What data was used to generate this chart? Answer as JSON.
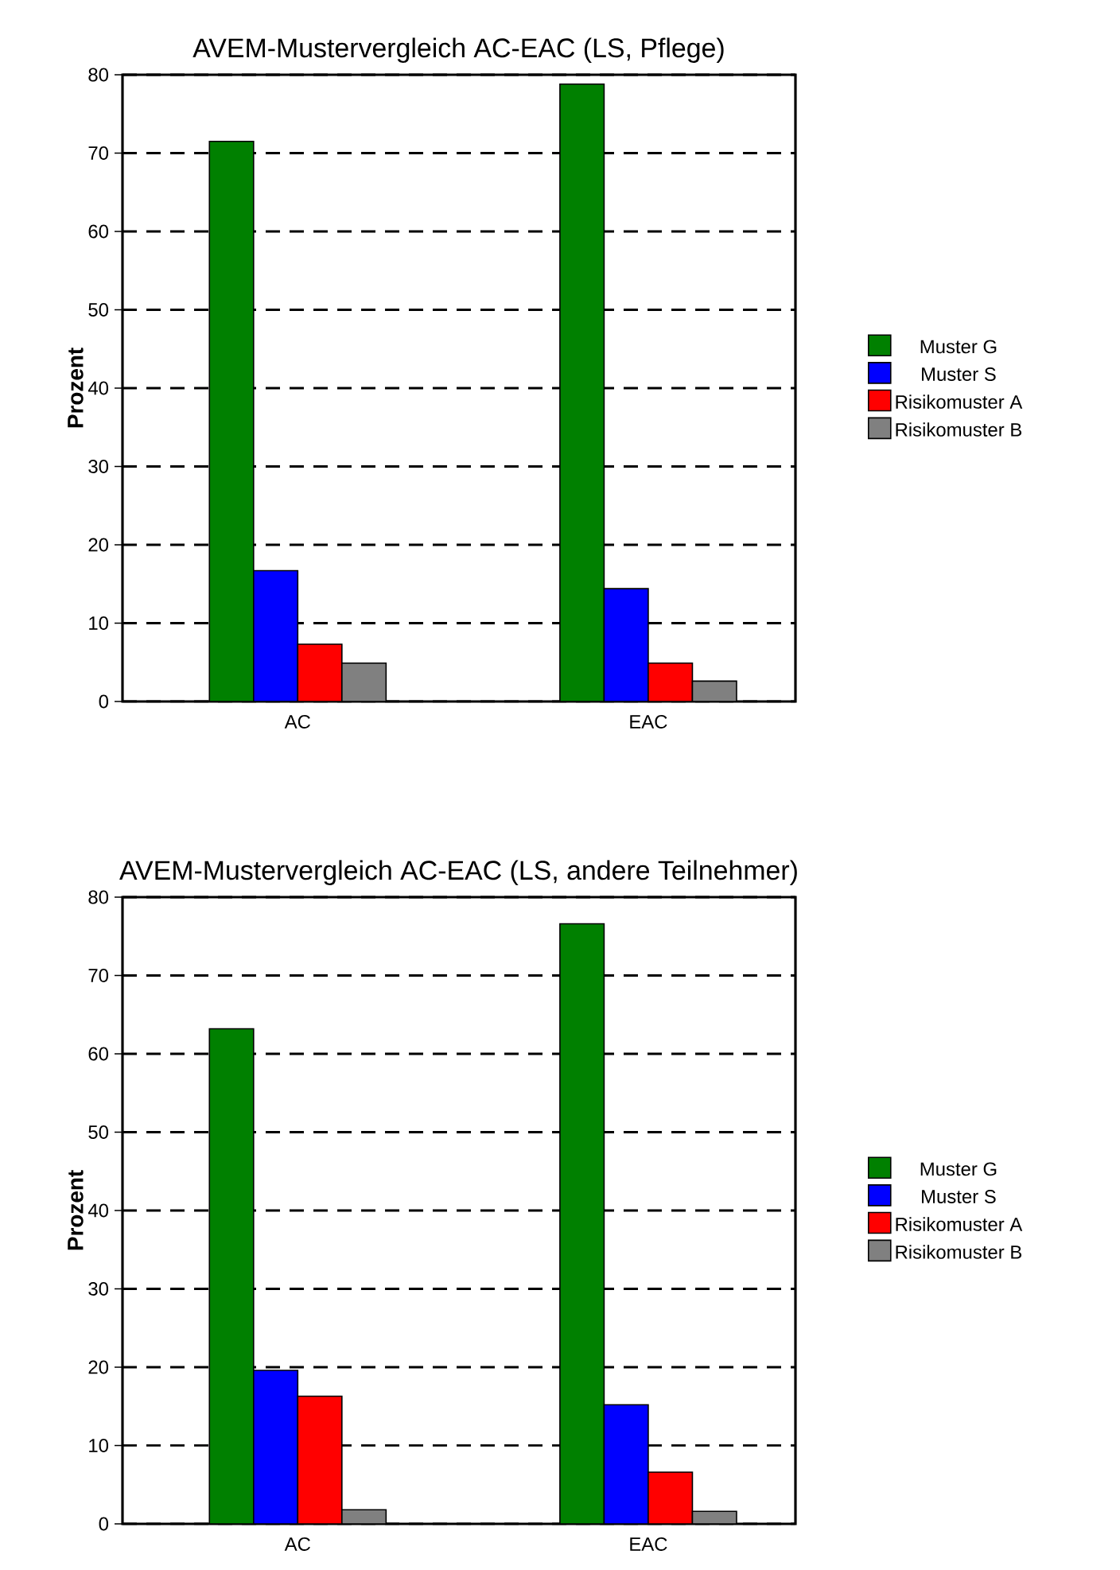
{
  "chart_data": [
    {
      "type": "bar",
      "title": "AVEM-Mustervergleich AC-EAC (LS, Pflege)",
      "ylabel": "Prozent",
      "categories": [
        "AC",
        "EAC"
      ],
      "series": [
        {
          "name": "Muster G",
          "color": "#008000",
          "values": [
            71.5,
            78.8
          ]
        },
        {
          "name": "Muster S",
          "color": "#0000ff",
          "values": [
            16.7,
            14.4
          ]
        },
        {
          "name": "Risikomuster A",
          "color": "#ff0000",
          "values": [
            7.3,
            4.9
          ]
        },
        {
          "name": "Risikomuster B",
          "color": "#808080",
          "values": [
            4.9,
            2.6
          ]
        }
      ],
      "ylim": [
        0,
        80
      ],
      "yticks": [
        0,
        10,
        20,
        30,
        40,
        50,
        60,
        70,
        80
      ],
      "grid": "y",
      "legend": "right"
    },
    {
      "type": "bar",
      "title": "AVEM-Mustervergleich AC-EAC (LS, andere Teilnehmer)",
      "ylabel": "Prozent",
      "categories": [
        "AC",
        "EAC"
      ],
      "series": [
        {
          "name": "Muster G",
          "color": "#008000",
          "values": [
            63.2,
            76.6
          ]
        },
        {
          "name": "Muster S",
          "color": "#0000ff",
          "values": [
            19.6,
            15.2
          ]
        },
        {
          "name": "Risikomuster A",
          "color": "#ff0000",
          "values": [
            16.3,
            6.6
          ]
        },
        {
          "name": "Risikomuster B",
          "color": "#808080",
          "values": [
            1.8,
            1.6
          ]
        }
      ],
      "ylim": [
        0,
        80
      ],
      "yticks": [
        0,
        10,
        20,
        30,
        40,
        50,
        60,
        70,
        80
      ],
      "grid": "y",
      "legend": "right"
    }
  ]
}
